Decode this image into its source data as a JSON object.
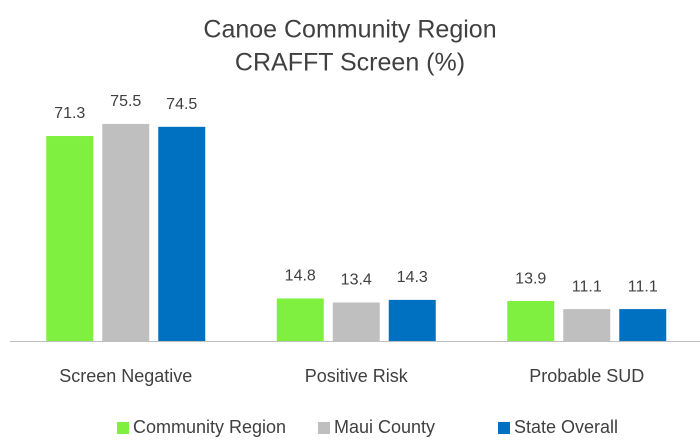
{
  "chart_data": {
    "type": "bar",
    "title": [
      "Canoe Community Region",
      "CRAFFT Screen (%)"
    ],
    "categories": [
      "Screen Negative",
      "Positive Risk",
      "Probable SUD"
    ],
    "series": [
      {
        "name": "Community Region",
        "color": "#80f040",
        "values": [
          71.3,
          14.8,
          13.9
        ]
      },
      {
        "name": "Maui County",
        "color": "#bfbfbf",
        "values": [
          75.5,
          13.4,
          11.1
        ]
      },
      {
        "name": "State Overall",
        "color": "#0070c0",
        "values": [
          74.5,
          14.3,
          11.1
        ]
      }
    ],
    "legend": "bottom"
  }
}
